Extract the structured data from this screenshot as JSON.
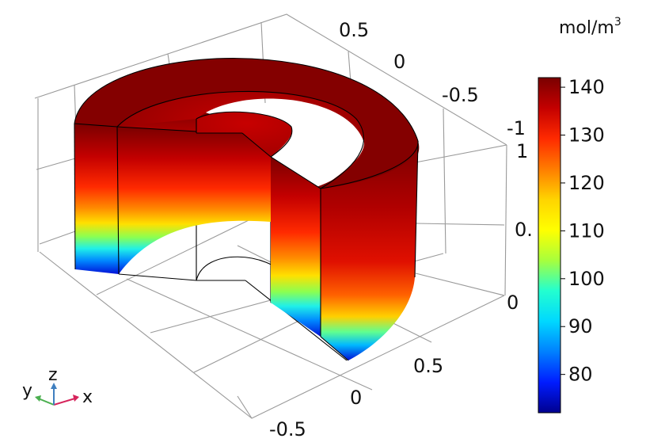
{
  "colorbar": {
    "unit": "mol/m",
    "unit_sup": "3",
    "ticks": [
      "140",
      "130",
      "120",
      "110",
      "100",
      "90",
      "80"
    ],
    "min": 72,
    "max": 142,
    "colormap": [
      "#7a0000",
      "#c40000",
      "#ff2a00",
      "#ff7d00",
      "#ffd400",
      "#ffff00",
      "#a8ff3c",
      "#23ffcf",
      "#00d8ff",
      "#0080ff",
      "#001cff",
      "#00008f"
    ]
  },
  "axes": {
    "top_ticks": [
      "0.5",
      "0",
      "-0.5",
      "-1"
    ],
    "z_ticks": [
      "1",
      "0.",
      "0"
    ],
    "bottom_ticks": [
      "0.5",
      "0",
      "-0.5"
    ]
  },
  "triad": {
    "x": "x",
    "y": "y",
    "z": "z",
    "x_color": "#d6245c",
    "y_color": "#4caf50",
    "z_color": "#3f7fbf"
  }
}
